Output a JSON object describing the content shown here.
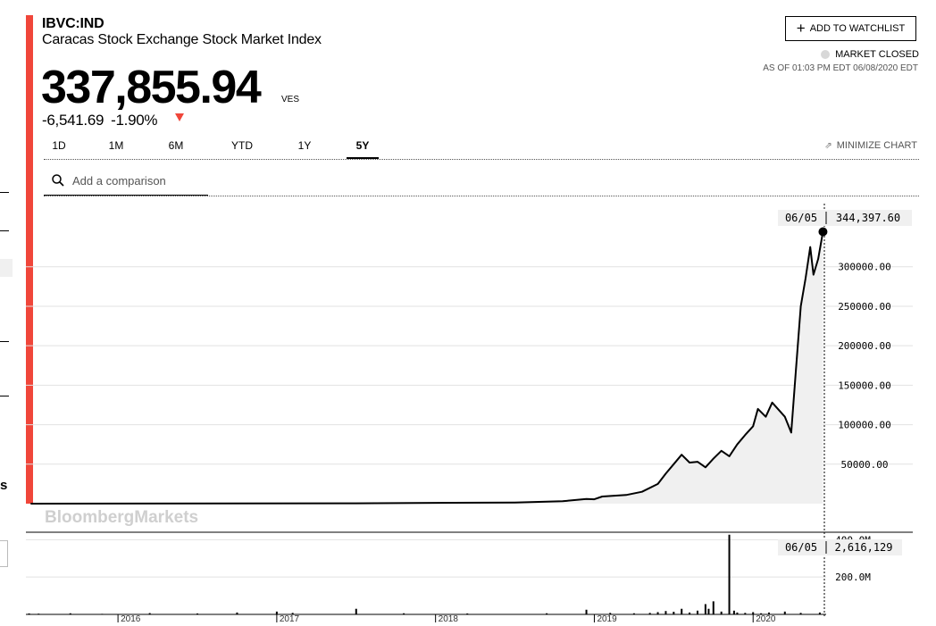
{
  "header": {
    "ticker": "IBVC:IND",
    "name": "Caracas Stock Exchange Stock Market Index",
    "price": "337,855.94",
    "currency": "VES",
    "change": "-6,541.69",
    "change_pct": "-1.90%",
    "direction": "down",
    "down_color": "#f0463a"
  },
  "actions": {
    "watchlist_label": "ADD TO WATCHLIST",
    "market_status": "MARKET CLOSED",
    "as_of": "AS OF 01:03 PM EDT 06/08/2020 EDT"
  },
  "tabs": [
    {
      "label": "1D",
      "active": false
    },
    {
      "label": "1M",
      "active": false
    },
    {
      "label": "6M",
      "active": false
    },
    {
      "label": "YTD",
      "active": false
    },
    {
      "label": "1Y",
      "active": false
    },
    {
      "label": "5Y",
      "active": true
    }
  ],
  "minimize_label": "MINIMIZE CHART",
  "compare": {
    "placeholder": "Add a comparison"
  },
  "watermark": "BloombergMarkets",
  "chart_data": [
    {
      "type": "line",
      "title": "",
      "xlabel": "",
      "ylabel": "",
      "x": [
        2015.45,
        2017.5,
        2018.5,
        2018.8,
        2018.95,
        2019.0,
        2019.05,
        2019.2,
        2019.3,
        2019.4,
        2019.45,
        2019.5,
        2019.55,
        2019.6,
        2019.65,
        2019.7,
        2019.75,
        2019.8,
        2019.85,
        2019.9,
        2019.95,
        2020.0,
        2020.03,
        2020.08,
        2020.12,
        2020.2,
        2020.24,
        2020.27,
        2020.3,
        2020.33,
        2020.36,
        2020.38,
        2020.41,
        2020.44
      ],
      "y": [
        0,
        500,
        1500,
        3000,
        6000,
        5500,
        9000,
        11000,
        15000,
        25000,
        38000,
        50000,
        62000,
        52000,
        53000,
        46000,
        57000,
        67000,
        60000,
        75000,
        87000,
        98000,
        120000,
        110000,
        128000,
        110000,
        90000,
        170000,
        250000,
        285000,
        325000,
        290000,
        310000,
        344397.6
      ],
      "ylim": [
        0,
        380000
      ],
      "xlim": [
        2015.42,
        2020.46
      ],
      "y_ticks": [
        "300000.00",
        "250000.00",
        "200000.00",
        "150000.00",
        "100000.00",
        "50000.00"
      ],
      "y_tick_values": [
        300000,
        250000,
        200000,
        150000,
        100000,
        50000
      ],
      "x_ticks": [
        "2016",
        "2017",
        "2018",
        "2019",
        "2020"
      ],
      "x_tick_values": [
        2016,
        2017,
        2018,
        2019,
        2020
      ],
      "crosshair": {
        "date": "06/05",
        "value": "344,397.60"
      },
      "grid": true
    },
    {
      "type": "bar",
      "title": "",
      "y_ticks": [
        "400.0M",
        "200.0M"
      ],
      "y_tick_values": [
        400,
        200
      ],
      "ylim": [
        0,
        440
      ],
      "crosshair": {
        "date": "06/05",
        "value": "2,616,129"
      },
      "x": [
        2015.44,
        2015.5,
        2015.7,
        2015.9,
        2016.2,
        2016.5,
        2016.75,
        2017.0,
        2017.1,
        2017.5,
        2017.8,
        2018.2,
        2018.7,
        2018.95,
        2019.1,
        2019.25,
        2019.35,
        2019.4,
        2019.45,
        2019.5,
        2019.55,
        2019.6,
        2019.65,
        2019.7,
        2019.72,
        2019.75,
        2019.8,
        2019.85,
        2019.88,
        2019.9,
        2019.95,
        2020.0,
        2020.05,
        2020.1,
        2020.2,
        2020.3,
        2020.42
      ],
      "values": [
        5,
        4,
        6,
        3,
        7,
        5,
        10,
        15,
        8,
        30,
        6,
        5,
        6,
        25,
        8,
        6,
        8,
        12,
        18,
        14,
        30,
        10,
        20,
        55,
        30,
        70,
        15,
        460,
        20,
        10,
        8,
        12,
        6,
        10,
        15,
        8,
        10
      ]
    }
  ]
}
